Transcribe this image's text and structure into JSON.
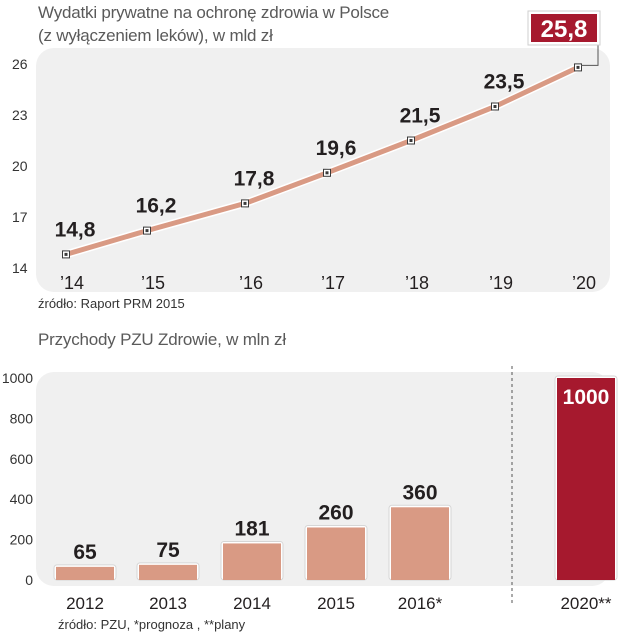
{
  "chart_data": [
    {
      "type": "line",
      "title": "Wydatki prywatne na ochronę zdrowia w Polsce",
      "subtitle": "(z wyłączeniem leków), w mld zł",
      "x": [
        "’14",
        "’15",
        "’16",
        "’17",
        "’18",
        "’19",
        "’20"
      ],
      "values": [
        14.8,
        16.2,
        17.8,
        19.6,
        21.5,
        23.5,
        25.8
      ],
      "value_labels": [
        "14,8",
        "16,2",
        "17,8",
        "19,6",
        "21,5",
        "23,5",
        "25,8"
      ],
      "ylim": [
        14,
        26
      ],
      "yticks": [
        14,
        17,
        20,
        23,
        26
      ],
      "grid": false,
      "source": "źródło: Raport PRM 2015",
      "colors": {
        "line": "#d99a84",
        "panel": "#f0f0f0",
        "highlight": "#a6192e",
        "marker": "#3a3a3a"
      }
    },
    {
      "type": "bar",
      "title": "Przychody PZU Zdrowie, w mln zł",
      "categories": [
        "2012",
        "2013",
        "2014",
        "2015",
        "2016*",
        "2020**"
      ],
      "values": [
        65,
        75,
        181,
        260,
        360,
        1000
      ],
      "value_labels": [
        "65",
        "75",
        "181",
        "260",
        "360",
        "1000"
      ],
      "ylim": [
        0,
        1000
      ],
      "yticks": [
        0,
        200,
        400,
        600,
        800,
        1000
      ],
      "grid": false,
      "source": "źródło: PZU, *prognoza , **plany",
      "colors": {
        "bar": "#d99a84",
        "highlight": "#a6192e",
        "panel": "#f0f0f0"
      }
    }
  ]
}
